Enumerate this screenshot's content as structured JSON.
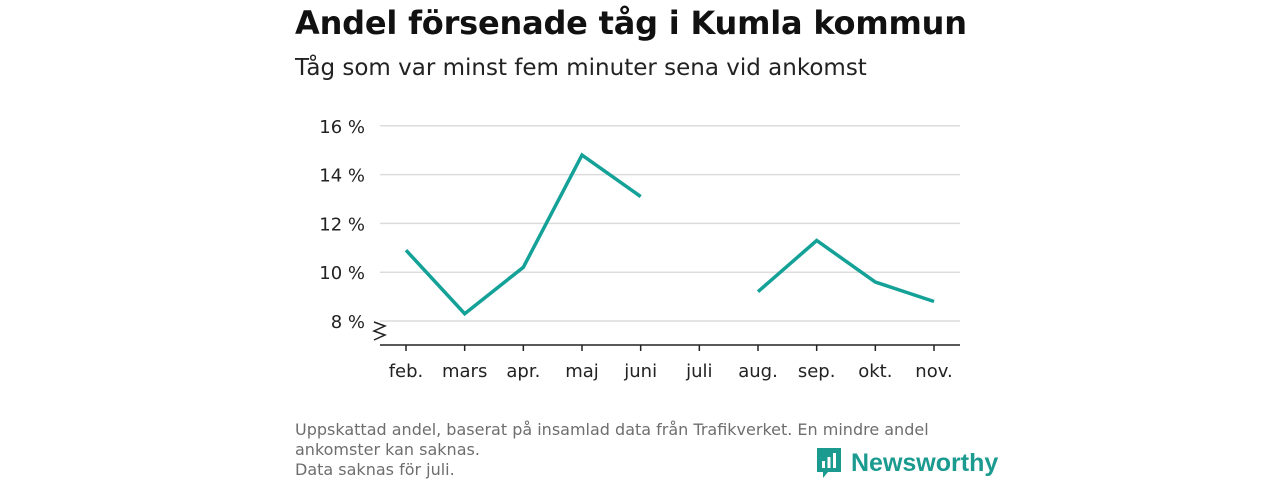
{
  "colors": {
    "line": "#14a197",
    "grid": "#dcdcdc",
    "axis": "#222222",
    "brand": "#1b9a8f",
    "note": "#6e6e6e"
  },
  "title": "Andel försenade tåg i Kumla kommun",
  "subtitle": "Tåg som var minst fem minuter sena vid ankomst",
  "notes": [
    "Uppskattad andel, baserat på insamlad data från Trafikverket. En mindre andel",
    "ankomster kan saknas.",
    "Data saknas för juli."
  ],
  "brand": {
    "name": "Newsworthy",
    "icon": "newsworthy-logo-icon"
  },
  "chart_data": {
    "type": "line",
    "title": "Andel försenade tåg i Kumla kommun",
    "subtitle": "Tåg som var minst fem minuter sena vid ankomst",
    "categories": [
      "feb.",
      "mars",
      "apr.",
      "maj",
      "juni",
      "juli",
      "aug.",
      "sep.",
      "okt.",
      "nov."
    ],
    "series": [
      {
        "values": [
          10.9,
          8.3,
          10.2,
          14.8,
          13.1,
          null,
          9.2,
          11.3,
          9.6,
          8.8
        ]
      }
    ],
    "yticks": [
      8,
      10,
      12,
      14,
      16
    ],
    "ytick_labels": [
      "8 %",
      "10 %",
      "12 %",
      "14 %",
      "16 %"
    ],
    "ylim": [
      7,
      16
    ],
    "y_axis_break": true,
    "grid": "horizontal",
    "xlabel": "",
    "ylabel": ""
  }
}
